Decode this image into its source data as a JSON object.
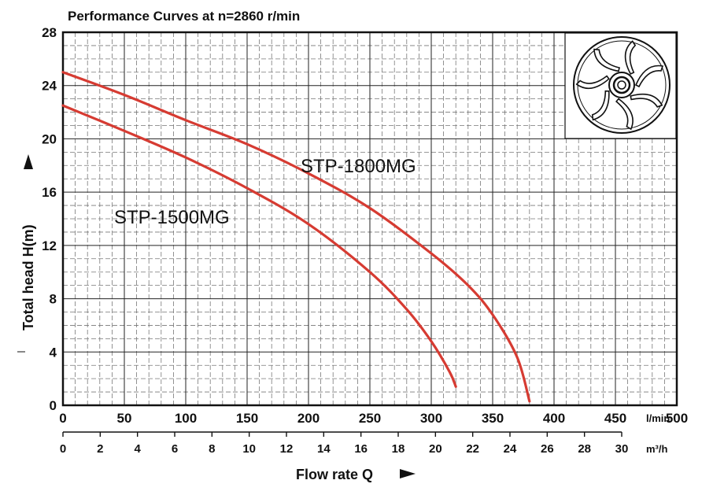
{
  "chart_data": {
    "type": "line",
    "title": "Performance Curves at n=2860 r/min",
    "xlabel": "Flow rate Q",
    "ylabel": "Total head  H(m)",
    "x_unit_primary": "l/min",
    "x_unit_secondary": "m³/h",
    "xlim": [
      0,
      500
    ],
    "ylim": [
      0,
      28
    ],
    "x_ticks_primary": [
      "0",
      "50",
      "100",
      "150",
      "200",
      "250",
      "300",
      "350",
      "400",
      "450",
      "500"
    ],
    "x_ticks_secondary": [
      "0",
      "2",
      "4",
      "6",
      "8",
      "10",
      "12",
      "14",
      "16",
      "18",
      "20",
      "22",
      "24",
      "26",
      "28",
      "30"
    ],
    "y_ticks": [
      "0",
      "4",
      "8",
      "12",
      "16",
      "20",
      "24",
      "28"
    ],
    "grid": true,
    "series": [
      {
        "name": "STP-1800MG",
        "color": "#d63b32",
        "x": [
          0,
          50,
          100,
          150,
          200,
          250,
          300,
          330,
          350,
          370,
          380
        ],
        "y": [
          25.0,
          23.3,
          21.4,
          19.6,
          17.4,
          14.8,
          11.4,
          9.0,
          6.8,
          3.6,
          0.3
        ]
      },
      {
        "name": "STP-1500MG",
        "color": "#d63b32",
        "x": [
          0,
          50,
          100,
          150,
          200,
          250,
          280,
          300,
          315,
          320
        ],
        "y": [
          22.5,
          20.6,
          18.6,
          16.3,
          13.6,
          10.0,
          7.2,
          4.8,
          2.5,
          1.4
        ]
      }
    ],
    "annotations": [
      "impeller-illustration"
    ]
  }
}
